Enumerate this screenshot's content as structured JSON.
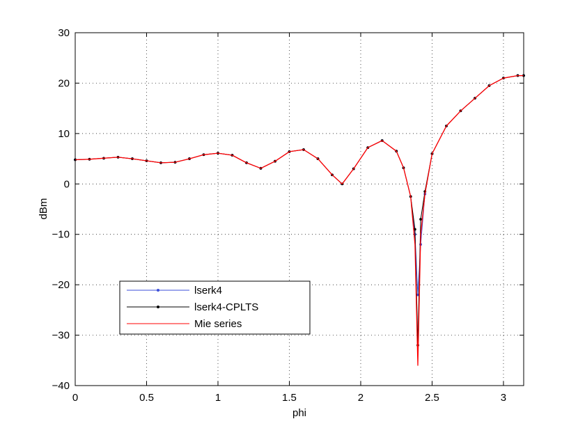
{
  "chart_data": {
    "type": "line",
    "title": "",
    "xlabel": "phi",
    "ylabel": "dBm",
    "xlim": [
      0,
      3.1416
    ],
    "ylim": [
      -40,
      30
    ],
    "xticks": [
      0,
      0.5,
      1,
      1.5,
      2,
      2.5,
      3
    ],
    "xtick_labels": [
      "0",
      "0.5",
      "1",
      "1.5",
      "2",
      "2.5",
      "3"
    ],
    "yticks": [
      -40,
      -30,
      -20,
      -10,
      0,
      10,
      20,
      30
    ],
    "ytick_labels": [
      "−40",
      "−30",
      "−20",
      "−10",
      "0",
      "10",
      "20",
      "30"
    ],
    "grid": true,
    "legend_position": "lower-left",
    "series": [
      {
        "name": "lserk4",
        "color": "#3b4fd8",
        "marker": "dot",
        "x": [
          0,
          0.1,
          0.2,
          0.3,
          0.4,
          0.5,
          0.6,
          0.7,
          0.8,
          0.9,
          1.0,
          1.1,
          1.2,
          1.3,
          1.4,
          1.5,
          1.6,
          1.7,
          1.8,
          1.87,
          1.95,
          2.05,
          2.15,
          2.25,
          2.3,
          2.35,
          2.38,
          2.4,
          2.42,
          2.45,
          2.5,
          2.6,
          2.7,
          2.8,
          2.9,
          3.0,
          3.1,
          3.1416
        ],
        "y": [
          4.8,
          4.9,
          5.1,
          5.3,
          5.0,
          4.6,
          4.2,
          4.3,
          5.0,
          5.8,
          6.1,
          5.7,
          4.2,
          3.1,
          4.5,
          6.4,
          6.8,
          5.0,
          1.8,
          0.0,
          3.0,
          7.2,
          8.6,
          6.5,
          3.2,
          -2.5,
          -10.0,
          -22.0,
          -12.0,
          -2.0,
          6.0,
          11.5,
          14.5,
          17.0,
          19.5,
          21.0,
          21.5,
          21.5
        ]
      },
      {
        "name": "lserk4-CPLTS",
        "color": "#000000",
        "marker": "dot",
        "x": [
          0,
          0.1,
          0.2,
          0.3,
          0.4,
          0.5,
          0.6,
          0.7,
          0.8,
          0.9,
          1.0,
          1.1,
          1.2,
          1.3,
          1.4,
          1.5,
          1.6,
          1.7,
          1.8,
          1.87,
          1.95,
          2.05,
          2.15,
          2.25,
          2.3,
          2.35,
          2.38,
          2.4,
          2.42,
          2.45,
          2.5,
          2.6,
          2.7,
          2.8,
          2.9,
          3.0,
          3.1,
          3.1416
        ],
        "y": [
          4.8,
          4.9,
          5.1,
          5.3,
          5.0,
          4.6,
          4.2,
          4.3,
          5.0,
          5.8,
          6.1,
          5.7,
          4.2,
          3.1,
          4.5,
          6.4,
          6.8,
          5.0,
          1.8,
          0.0,
          3.0,
          7.2,
          8.6,
          6.5,
          3.2,
          -2.5,
          -9.0,
          -32.0,
          -7.0,
          -1.5,
          6.0,
          11.5,
          14.5,
          17.0,
          19.5,
          21.0,
          21.5,
          21.5
        ]
      },
      {
        "name": "Mie series",
        "color": "#ff0000",
        "marker": "none",
        "x": [
          0,
          0.1,
          0.2,
          0.3,
          0.4,
          0.5,
          0.6,
          0.7,
          0.8,
          0.9,
          1.0,
          1.1,
          1.2,
          1.3,
          1.4,
          1.5,
          1.6,
          1.7,
          1.8,
          1.87,
          1.95,
          2.05,
          2.15,
          2.25,
          2.3,
          2.35,
          2.38,
          2.4,
          2.42,
          2.45,
          2.5,
          2.6,
          2.7,
          2.8,
          2.9,
          3.0,
          3.1,
          3.1416
        ],
        "y": [
          4.8,
          4.9,
          5.1,
          5.3,
          5.0,
          4.6,
          4.2,
          4.3,
          5.0,
          5.8,
          6.1,
          5.7,
          4.2,
          3.1,
          4.5,
          6.4,
          6.8,
          5.0,
          1.8,
          0.0,
          3.0,
          7.2,
          8.6,
          6.5,
          3.2,
          -2.5,
          -12.0,
          -36.0,
          -10.0,
          -2.0,
          6.0,
          11.5,
          14.5,
          17.0,
          19.5,
          21.0,
          21.5,
          21.5
        ]
      }
    ]
  }
}
